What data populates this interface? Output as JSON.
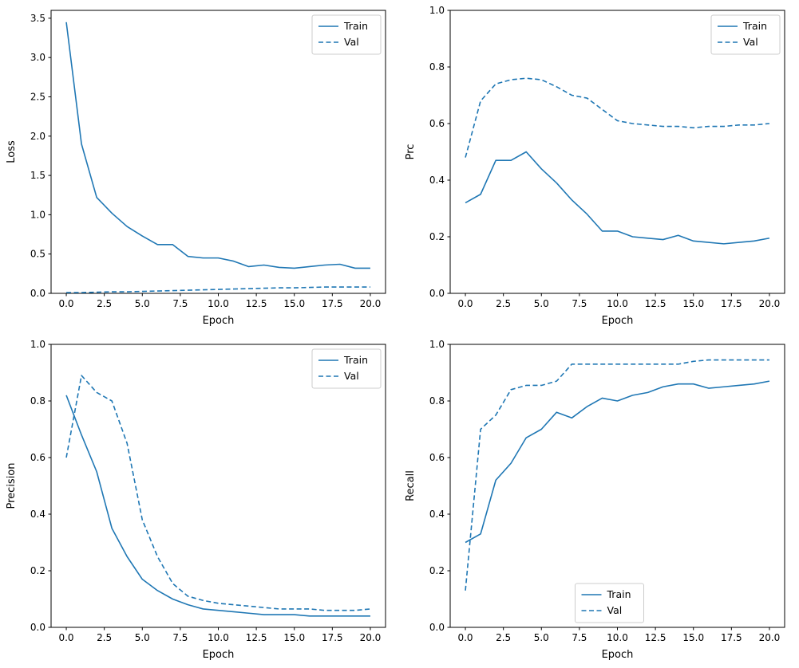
{
  "figure": {
    "background": "#ffffff",
    "line_color": "#1f77b4",
    "axis_color": "#000000",
    "legend_border_color": "#cccccc"
  },
  "chart_data": [
    {
      "type": "line",
      "name": "loss",
      "xlabel": "Epoch",
      "ylabel": "Loss",
      "xlim": [
        -1,
        21
      ],
      "ylim": [
        0,
        3.6
      ],
      "xticks": [
        0,
        2.5,
        5,
        7.5,
        10,
        12.5,
        15,
        17.5,
        20
      ],
      "yticks": [
        0,
        0.5,
        1,
        1.5,
        2,
        2.5,
        3,
        3.5
      ],
      "grid": false,
      "legend_position": "upper-right",
      "x": [
        0,
        1,
        2,
        3,
        4,
        5,
        6,
        7,
        8,
        9,
        10,
        11,
        12,
        13,
        14,
        15,
        16,
        17,
        18,
        19,
        20
      ],
      "series": [
        {
          "name": "Train",
          "style": "solid",
          "values": [
            3.45,
            1.9,
            1.22,
            1.02,
            0.85,
            0.73,
            0.62,
            0.62,
            0.47,
            0.45,
            0.45,
            0.41,
            0.34,
            0.36,
            0.33,
            0.32,
            0.34,
            0.36,
            0.37,
            0.32,
            0.32
          ]
        },
        {
          "name": "Val",
          "style": "dashed",
          "values": [
            0.01,
            0.01,
            0.015,
            0.02,
            0.02,
            0.025,
            0.03,
            0.035,
            0.04,
            0.045,
            0.05,
            0.055,
            0.06,
            0.065,
            0.07,
            0.07,
            0.075,
            0.08,
            0.08,
            0.08,
            0.08
          ]
        }
      ]
    },
    {
      "type": "line",
      "name": "prc",
      "xlabel": "Epoch",
      "ylabel": "Prc",
      "xlim": [
        -1,
        21
      ],
      "ylim": [
        0,
        1
      ],
      "xticks": [
        0,
        2.5,
        5,
        7.5,
        10,
        12.5,
        15,
        17.5,
        20
      ],
      "yticks": [
        0,
        0.2,
        0.4,
        0.6,
        0.8,
        1.0
      ],
      "grid": false,
      "legend_position": "upper-right",
      "x": [
        0,
        1,
        2,
        3,
        4,
        5,
        6,
        7,
        8,
        9,
        10,
        11,
        12,
        13,
        14,
        15,
        16,
        17,
        18,
        19,
        20
      ],
      "series": [
        {
          "name": "Train",
          "style": "solid",
          "values": [
            0.32,
            0.35,
            0.47,
            0.47,
            0.5,
            0.44,
            0.39,
            0.33,
            0.28,
            0.22,
            0.22,
            0.2,
            0.195,
            0.19,
            0.205,
            0.185,
            0.18,
            0.175,
            0.18,
            0.185,
            0.195
          ]
        },
        {
          "name": "Val",
          "style": "dashed",
          "values": [
            0.48,
            0.68,
            0.74,
            0.755,
            0.76,
            0.755,
            0.73,
            0.7,
            0.69,
            0.65,
            0.61,
            0.6,
            0.595,
            0.59,
            0.59,
            0.585,
            0.59,
            0.59,
            0.595,
            0.595,
            0.6
          ]
        }
      ]
    },
    {
      "type": "line",
      "name": "precision",
      "xlabel": "Epoch",
      "ylabel": "Precision",
      "xlim": [
        -1,
        21
      ],
      "ylim": [
        0,
        1
      ],
      "xticks": [
        0,
        2.5,
        5,
        7.5,
        10,
        12.5,
        15,
        17.5,
        20
      ],
      "yticks": [
        0,
        0.2,
        0.4,
        0.6,
        0.8,
        1.0
      ],
      "grid": false,
      "legend_position": "upper-right",
      "x": [
        0,
        1,
        2,
        3,
        4,
        5,
        6,
        7,
        8,
        9,
        10,
        11,
        12,
        13,
        14,
        15,
        16,
        17,
        18,
        19,
        20
      ],
      "series": [
        {
          "name": "Train",
          "style": "solid",
          "values": [
            0.82,
            0.68,
            0.55,
            0.35,
            0.25,
            0.17,
            0.13,
            0.1,
            0.08,
            0.065,
            0.06,
            0.055,
            0.05,
            0.045,
            0.045,
            0.045,
            0.04,
            0.04,
            0.04,
            0.04,
            0.04
          ]
        },
        {
          "name": "Val",
          "style": "dashed",
          "values": [
            0.6,
            0.89,
            0.83,
            0.8,
            0.65,
            0.38,
            0.25,
            0.155,
            0.11,
            0.095,
            0.085,
            0.08,
            0.075,
            0.07,
            0.065,
            0.065,
            0.065,
            0.06,
            0.06,
            0.06,
            0.065
          ]
        }
      ]
    },
    {
      "type": "line",
      "name": "recall",
      "xlabel": "Epoch",
      "ylabel": "Recall",
      "xlim": [
        -1,
        21
      ],
      "ylim": [
        0,
        1
      ],
      "xticks": [
        0,
        2.5,
        5,
        7.5,
        10,
        12.5,
        15,
        17.5,
        20
      ],
      "yticks": [
        0,
        0.2,
        0.4,
        0.6,
        0.8,
        1.0
      ],
      "grid": false,
      "legend_position": "lower-center",
      "x": [
        0,
        1,
        2,
        3,
        4,
        5,
        6,
        7,
        8,
        9,
        10,
        11,
        12,
        13,
        14,
        15,
        16,
        17,
        18,
        19,
        20
      ],
      "series": [
        {
          "name": "Train",
          "style": "solid",
          "values": [
            0.3,
            0.33,
            0.52,
            0.58,
            0.67,
            0.7,
            0.76,
            0.74,
            0.78,
            0.81,
            0.8,
            0.82,
            0.83,
            0.85,
            0.86,
            0.86,
            0.845,
            0.85,
            0.855,
            0.86,
            0.87
          ]
        },
        {
          "name": "Val",
          "style": "dashed",
          "values": [
            0.13,
            0.7,
            0.75,
            0.84,
            0.855,
            0.855,
            0.87,
            0.93,
            0.93,
            0.93,
            0.93,
            0.93,
            0.93,
            0.93,
            0.93,
            0.94,
            0.945,
            0.945,
            0.945,
            0.945,
            0.945
          ]
        }
      ]
    }
  ]
}
